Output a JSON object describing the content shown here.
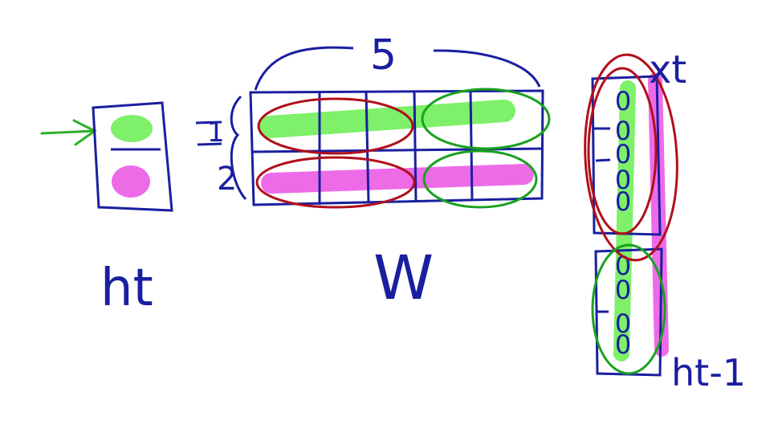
{
  "labels": {
    "top_count": "5",
    "row_one": "1",
    "row_two": "2",
    "h_t": "ht",
    "W": "W",
    "x_t": "xt",
    "h_t_minus_1": "ht-1",
    "vector_entries": [
      "0",
      "0",
      "0",
      "0",
      "0",
      "0",
      "0",
      "0",
      "0"
    ]
  },
  "colors": {
    "ink": "#1a1fa0",
    "green_highlight": "#7ef06a",
    "magenta_highlight": "#ee6be8",
    "red_ring": "#b0101a",
    "green_ring": "#19a11f",
    "arrow": "#2fb02a"
  }
}
